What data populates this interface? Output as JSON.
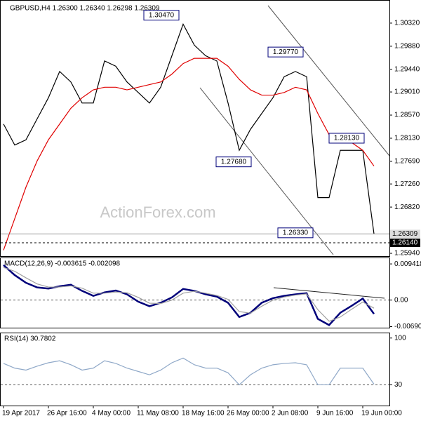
{
  "chart_data": [
    {
      "type": "line",
      "title": "GBPUSD,H4  1.26300 1.26340 1.26298 1.26309",
      "watermark": "ActionForex.com",
      "categories": [
        "19 Apr 2017",
        null,
        null,
        null,
        "26 Apr 16:00",
        null,
        null,
        null,
        "4 May 00:00",
        null,
        null,
        null,
        "11 May 08:00",
        null,
        null,
        null,
        "18 May 16:00",
        null,
        null,
        null,
        "26 May 00:00",
        null,
        null,
        null,
        "2 Jun 08:00",
        null,
        null,
        null,
        "9 Jun 16:00",
        null,
        null,
        null,
        "19 Jun 00:00",
        null
      ],
      "series": [
        {
          "color": "#000000",
          "values": [
            1.284,
            1.28,
            1.281,
            1.285,
            1.289,
            1.294,
            1.292,
            1.288,
            1.288,
            1.296,
            1.295,
            1.292,
            1.29,
            1.288,
            1.291,
            1.297,
            1.303,
            1.299,
            1.297,
            1.296,
            1.288,
            1.279,
            1.283,
            1.286,
            1.289,
            1.293,
            1.294,
            1.293,
            1.27,
            1.27,
            1.279,
            1.279,
            1.279,
            1.2631
          ]
        },
        {
          "color": "#e00000",
          "values": [
            1.26,
            1.266,
            1.272,
            1.277,
            1.281,
            1.284,
            1.287,
            1.289,
            1.2905,
            1.291,
            1.291,
            1.2905,
            1.291,
            1.2915,
            1.292,
            1.2935,
            1.2955,
            1.2965,
            1.2965,
            1.2965,
            1.295,
            1.2925,
            1.2905,
            1.2895,
            1.2895,
            1.29,
            1.291,
            1.2905,
            1.286,
            1.282,
            1.281,
            1.2805,
            1.279,
            1.276
          ]
        }
      ],
      "annotations": [
        {
          "value": 1.3047,
          "label": "1.30470"
        },
        {
          "value": 1.2977,
          "label": "1.29770"
        },
        {
          "value": 1.2813,
          "label": "1.28130"
        },
        {
          "value": 1.2768,
          "label": "1.27680"
        },
        {
          "value": 1.2633,
          "label": "1.26330"
        }
      ],
      "price_lines": [
        {
          "value": 1.26309,
          "label": "1.26309"
        },
        {
          "value": 1.2614,
          "label": "1.26140"
        }
      ],
      "ylim": [
        1.25887,
        1.30693
      ],
      "yticks": [
        {
          "value": 1.3032,
          "label": "1.30320"
        },
        {
          "value": 1.2988,
          "label": "1.29880"
        },
        {
          "value": 1.2944,
          "label": "1.29440"
        },
        {
          "value": 1.2901,
          "label": "1.29010"
        },
        {
          "value": 1.2857,
          "label": "1.28570"
        },
        {
          "value": 1.2813,
          "label": "1.28130"
        },
        {
          "value": 1.2769,
          "label": "1.27690"
        },
        {
          "value": 1.2726,
          "label": "1.27260"
        },
        {
          "value": 1.2682,
          "label": "1.26820"
        },
        {
          "value": 1.2594,
          "label": "1.25940"
        }
      ]
    },
    {
      "type": "line",
      "title": "MACD(12,26,9) -0.003615 -0.002098",
      "grid": "dashed",
      "series": [
        {
          "color": "#00007a",
          "values": [
            0.0091,
            0.0065,
            0.0045,
            0.0033,
            0.003,
            0.0036,
            0.004,
            0.0024,
            0.0011,
            0.002,
            0.0025,
            0.0015,
            -0.0004,
            -0.0016,
            -0.0007,
            0.0007,
            0.0029,
            0.0024,
            0.0015,
            0.0009,
            -0.0007,
            -0.0044,
            -0.0033,
            -0.0007,
            0.0005,
            0.0011,
            0.0015,
            0.0018,
            -0.0049,
            -0.0065,
            -0.0033,
            -0.0015,
            0.0004,
            -0.0036
          ]
        },
        {
          "color": "#a0a0a0",
          "values": [
            0.0085,
            0.0075,
            0.0058,
            0.0042,
            0.0034,
            0.0034,
            0.0037,
            0.0031,
            0.0018,
            0.0018,
            0.0021,
            0.0019,
            0.0007,
            -0.0008,
            -0.0009,
            0.0,
            0.0018,
            0.0023,
            0.0018,
            0.0012,
            0.0002,
            -0.003,
            -0.0034,
            -0.0016,
            0.0,
            0.0008,
            0.0013,
            0.0016,
            -0.0025,
            -0.0055,
            -0.0044,
            -0.0024,
            -0.0005,
            -0.0021
          ]
        }
      ],
      "ylim": [
        -0.007,
        0.0109
      ],
      "yticks": [
        0.009418,
        {
          "value": 0,
          "label": "0.00"
        },
        -0.006906
      ]
    },
    {
      "type": "line",
      "title": "RSI(14) 30.7802",
      "grid": "dashed",
      "series": [
        {
          "color": "#8fa8c8",
          "values": [
            62,
            55,
            52,
            58,
            63,
            66,
            60,
            52,
            55,
            66,
            62,
            55,
            50,
            45,
            52,
            63,
            70,
            60,
            55,
            55,
            48,
            30,
            45,
            55,
            60,
            62,
            63,
            60,
            30,
            30,
            55,
            55,
            55,
            31
          ]
        }
      ],
      "ylim": [
        0,
        105
      ],
      "yticks": [
        100,
        30
      ]
    }
  ]
}
